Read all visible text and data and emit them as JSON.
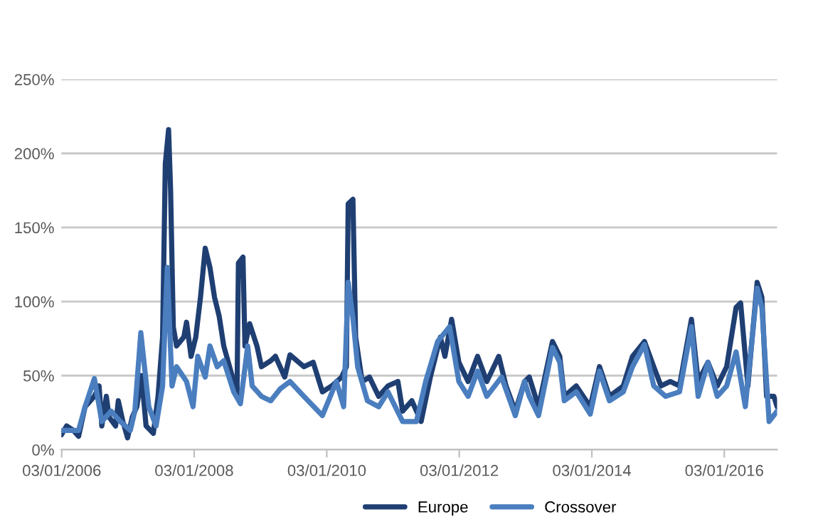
{
  "chart_data": {
    "type": "line",
    "xlim": [
      "2006-01-01",
      "2016-10-20"
    ],
    "xticks": [
      {
        "value": "2006-01-03",
        "label": "03/01/2006"
      },
      {
        "value": "2008-01-03",
        "label": "03/01/2008"
      },
      {
        "value": "2010-01-03",
        "label": "03/01/2010"
      },
      {
        "value": "2012-01-03",
        "label": "03/01/2012"
      },
      {
        "value": "2014-01-03",
        "label": "03/01/2014"
      },
      {
        "value": "2016-01-03",
        "label": "03/01/2016"
      }
    ],
    "ylim": [
      0,
      2.5
    ],
    "yticks": [
      {
        "value": 0,
        "label": "0%"
      },
      {
        "value": 0.5,
        "label": "50%"
      },
      {
        "value": 1,
        "label": "100%"
      },
      {
        "value": 1.5,
        "label": "150%"
      },
      {
        "value": 2,
        "label": "200%"
      },
      {
        "value": 2.5,
        "label": "250%"
      }
    ],
    "grid": "y",
    "legend": "bottom",
    "marker": "none",
    "line_style": "solid",
    "series": [
      {
        "name": "Europe",
        "color": "#1f3f73",
        "x": [
          "2006-01-01",
          "2006-01-30",
          "2006-03-08",
          "2006-04-06",
          "2006-05-12",
          "2006-07-02",
          "2006-07-28",
          "2006-08-12",
          "2006-09-06",
          "2006-09-21",
          "2006-10-27",
          "2006-11-11",
          "2006-12-06",
          "2007-01-01",
          "2007-01-27",
          "2007-02-21",
          "2007-03-19",
          "2007-04-13",
          "2007-05-23",
          "2007-06-18",
          "2007-07-13",
          "2007-07-28",
          "2007-08-15",
          "2007-08-26",
          "2007-09-10",
          "2007-09-28",
          "2007-11-07",
          "2007-11-22",
          "2007-12-17",
          "2008-01-12",
          "2008-02-07",
          "2008-03-04",
          "2008-03-30",
          "2008-04-24",
          "2008-05-20",
          "2008-06-14",
          "2008-08-08",
          "2008-08-26",
          "2008-09-03",
          "2008-09-28",
          "2008-10-09",
          "2008-11-04",
          "2008-12-14",
          "2009-01-08",
          "2009-02-28",
          "2009-03-26",
          "2009-05-16",
          "2009-06-14",
          "2009-08-30",
          "2009-10-20",
          "2009-12-10",
          "2010-01-30",
          "2010-03-26",
          "2010-04-21",
          "2010-05-01",
          "2010-05-27",
          "2010-06-11",
          "2010-07-17",
          "2010-08-26",
          "2010-10-16",
          "2010-12-06",
          "2011-01-30",
          "2011-02-25",
          "2011-04-17",
          "2011-06-07",
          "2011-07-28",
          "2011-09-21",
          "2011-10-16",
          "2011-11-22",
          "2012-01-01",
          "2012-02-21",
          "2012-04-13",
          "2012-06-03",
          "2012-08-08",
          "2012-09-17",
          "2012-11-07",
          "2012-12-28",
          "2013-01-23",
          "2013-03-15",
          "2013-05-31",
          "2013-07-10",
          "2013-08-04",
          "2013-10-09",
          "2013-12-25",
          "2014-02-14",
          "2014-04-10",
          "2014-06-25",
          "2014-08-15",
          "2014-10-20",
          "2014-12-10",
          "2015-01-19",
          "2015-03-11",
          "2015-05-01",
          "2015-07-06",
          "2015-08-12",
          "2015-10-05",
          "2015-11-25",
          "2016-01-16",
          "2016-03-08",
          "2016-04-02",
          "2016-05-12",
          "2016-07-02",
          "2016-07-28",
          "2016-08-23",
          "2016-10-02",
          "2016-10-20"
        ],
        "values": [
          0.1,
          0.16,
          0.13,
          0.09,
          0.29,
          0.36,
          0.43,
          0.16,
          0.36,
          0.22,
          0.16,
          0.33,
          0.19,
          0.08,
          0.22,
          0.29,
          0.5,
          0.16,
          0.11,
          0.36,
          0.76,
          1.93,
          2.16,
          1.76,
          0.83,
          0.7,
          0.76,
          0.86,
          0.63,
          0.76,
          1.03,
          1.36,
          1.23,
          1.03,
          0.9,
          0.7,
          0.46,
          0.36,
          1.26,
          1.3,
          0.7,
          0.85,
          0.7,
          0.56,
          0.6,
          0.63,
          0.49,
          0.64,
          0.56,
          0.59,
          0.39,
          0.43,
          0.49,
          0.56,
          1.66,
          1.69,
          0.76,
          0.46,
          0.49,
          0.36,
          0.43,
          0.46,
          0.26,
          0.33,
          0.19,
          0.49,
          0.76,
          0.63,
          0.88,
          0.59,
          0.46,
          0.63,
          0.46,
          0.63,
          0.43,
          0.26,
          0.46,
          0.49,
          0.29,
          0.73,
          0.63,
          0.36,
          0.43,
          0.29,
          0.56,
          0.36,
          0.43,
          0.63,
          0.73,
          0.56,
          0.43,
          0.46,
          0.43,
          0.88,
          0.46,
          0.59,
          0.43,
          0.56,
          0.96,
          0.99,
          0.43,
          1.13,
          1.03,
          0.36,
          0.36,
          0.29
        ]
      },
      {
        "name": "Crossover",
        "color": "#4a7ebf",
        "x": [
          "2006-01-01",
          "2006-04-06",
          "2006-05-12",
          "2006-07-02",
          "2006-08-12",
          "2006-10-02",
          "2006-11-22",
          "2007-01-16",
          "2007-02-10",
          "2007-03-15",
          "2007-04-28",
          "2007-06-07",
          "2007-07-13",
          "2007-08-08",
          "2007-09-03",
          "2007-09-28",
          "2007-11-22",
          "2007-12-28",
          "2008-01-23",
          "2008-03-04",
          "2008-03-30",
          "2008-05-09",
          "2008-06-14",
          "2008-08-08",
          "2008-09-14",
          "2008-10-24",
          "2008-11-18",
          "2009-01-08",
          "2009-02-28",
          "2009-04-21",
          "2009-06-14",
          "2009-08-30",
          "2009-12-10",
          "2010-02-25",
          "2010-04-06",
          "2010-05-01",
          "2010-05-27",
          "2010-06-22",
          "2010-08-15",
          "2010-10-16",
          "2010-12-06",
          "2011-02-25",
          "2011-05-12",
          "2011-07-02",
          "2011-09-06",
          "2011-11-11",
          "2012-01-01",
          "2012-02-21",
          "2012-04-13",
          "2012-06-03",
          "2012-08-23",
          "2012-11-07",
          "2012-12-28",
          "2013-01-23",
          "2013-03-15",
          "2013-05-31",
          "2013-07-10",
          "2013-08-04",
          "2013-10-09",
          "2013-12-25",
          "2014-02-14",
          "2014-04-10",
          "2014-06-25",
          "2014-08-15",
          "2014-10-20",
          "2014-12-10",
          "2015-02-14",
          "2015-05-01",
          "2015-07-06",
          "2015-08-12",
          "2015-10-05",
          "2015-11-25",
          "2016-01-16",
          "2016-03-08",
          "2016-04-28",
          "2016-07-02",
          "2016-07-28",
          "2016-09-06",
          "2016-10-20"
        ],
        "values": [
          0.13,
          0.13,
          0.29,
          0.48,
          0.19,
          0.26,
          0.19,
          0.13,
          0.26,
          0.79,
          0.29,
          0.16,
          0.43,
          1.23,
          0.43,
          0.56,
          0.46,
          0.29,
          0.63,
          0.49,
          0.7,
          0.56,
          0.6,
          0.39,
          0.31,
          0.7,
          0.43,
          0.36,
          0.33,
          0.41,
          0.46,
          0.36,
          0.23,
          0.46,
          0.29,
          1.13,
          0.89,
          0.56,
          0.33,
          0.29,
          0.39,
          0.19,
          0.19,
          0.46,
          0.73,
          0.83,
          0.46,
          0.36,
          0.53,
          0.36,
          0.49,
          0.23,
          0.46,
          0.36,
          0.23,
          0.69,
          0.59,
          0.33,
          0.39,
          0.24,
          0.53,
          0.33,
          0.39,
          0.56,
          0.71,
          0.43,
          0.36,
          0.39,
          0.83,
          0.36,
          0.59,
          0.36,
          0.43,
          0.66,
          0.29,
          1.09,
          0.96,
          0.19,
          0.26
        ]
      }
    ]
  }
}
